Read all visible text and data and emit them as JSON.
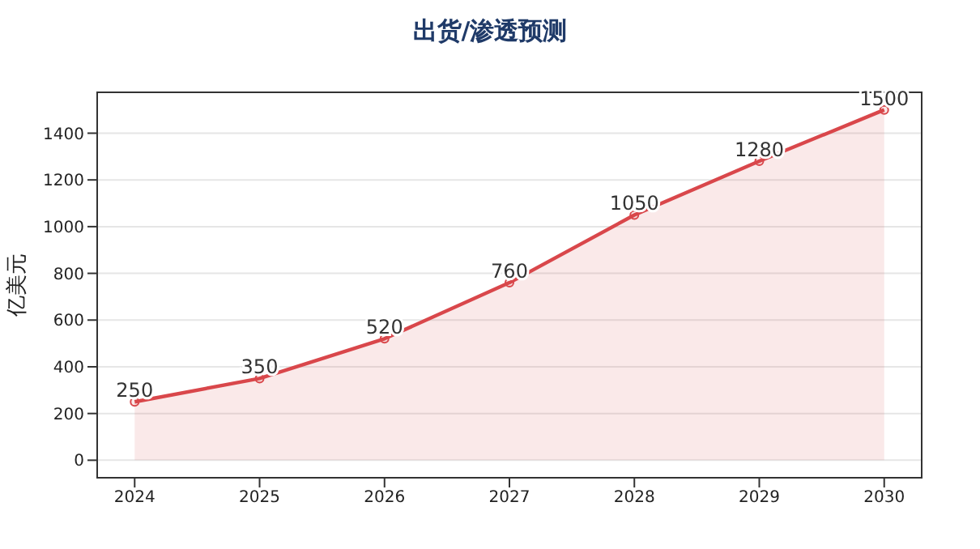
{
  "chart_data": {
    "type": "area",
    "title": "出货/渗透预测",
    "ylabel": "亿美元",
    "x": [
      2024,
      2025,
      2026,
      2027,
      2028,
      2029,
      2030
    ],
    "series": [
      {
        "color": "#d9474b",
        "values": [
          250,
          350,
          520,
          760,
          1050,
          1280,
          1500
        ]
      }
    ],
    "xlim": [
      2023.7,
      2030.3
    ],
    "xticks": [
      2024,
      2025,
      2026,
      2027,
      2028,
      2029,
      2030
    ],
    "ylim": [
      -75,
      1575
    ],
    "yticks": [
      0,
      200,
      400,
      600,
      800,
      1000,
      1200,
      1400
    ],
    "grid": "y",
    "marker": "circle",
    "data_labels": true
  }
}
